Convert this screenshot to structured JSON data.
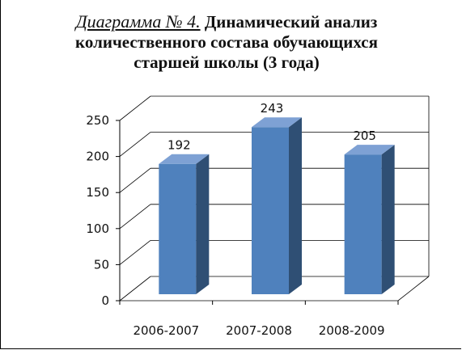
{
  "title_prefix": "Диаграмма № 4.",
  "title_text": "Динамический анализ количественного состава обучающихся старшей школы (3 года)",
  "colors": {
    "bar_front": "#4f81bd",
    "bar_side": "#2f4f74",
    "bar_top": "#7ea1d4",
    "gridline": "#000000"
  },
  "chart_data": {
    "type": "bar",
    "title": "Диаграмма № 4. Динамический анализ количественного состава обучающихся старшей школы (3 года)",
    "categories": [
      "2006-2007",
      "2007-2008",
      "2008-2009"
    ],
    "values": [
      192,
      243,
      205
    ],
    "data_labels": [
      "192",
      "243",
      "205"
    ],
    "yticks": [
      "0",
      "50",
      "100",
      "150",
      "200",
      "250"
    ],
    "ylim": [
      0,
      250
    ],
    "xlabel": "",
    "ylabel": "",
    "grid": true,
    "legend": "none",
    "style": "3d-column"
  }
}
